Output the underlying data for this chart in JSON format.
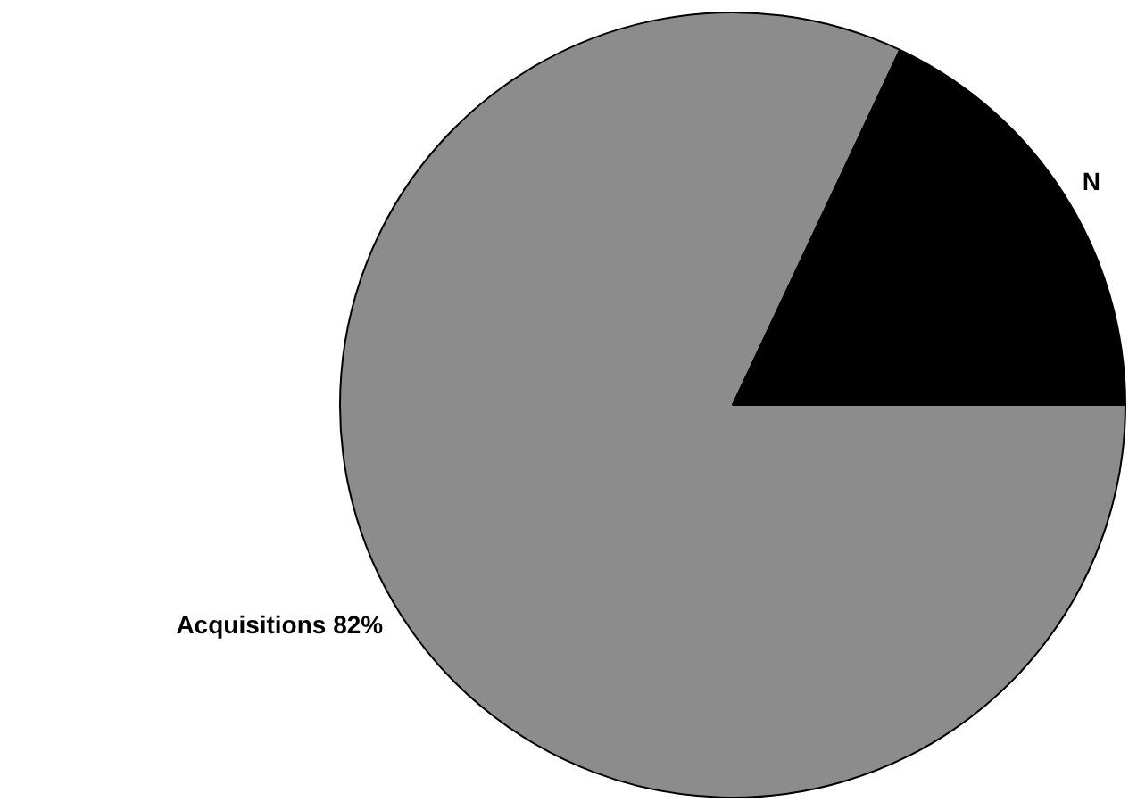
{
  "chart_data": {
    "type": "pie",
    "categories": [
      "Acquisitions",
      "N"
    ],
    "values": [
      82,
      18
    ],
    "colors": [
      "#8c8c8c",
      "#000000"
    ],
    "value_labels": [
      "82%",
      null
    ],
    "legend": false
  }
}
